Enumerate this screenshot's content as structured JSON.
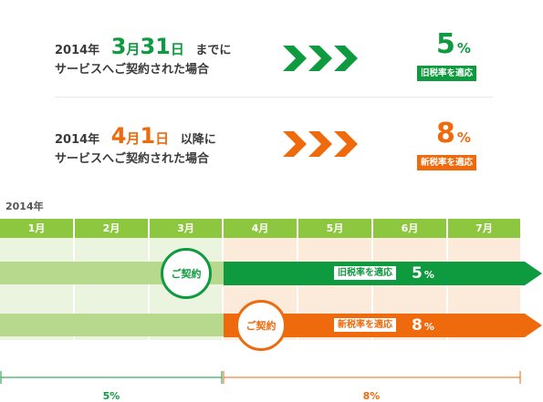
{
  "top": {
    "row1": {
      "year": "2014年",
      "month_num": "3",
      "month_unit": "月",
      "day_num": "31",
      "day_unit": "日",
      "suffix": "までに",
      "line2": "サービスへご契約された場合",
      "rate_value": "5",
      "rate_unit": "%",
      "badge": "旧税率を適応"
    },
    "row2": {
      "year": "2014年",
      "month_num": "4",
      "month_unit": "月",
      "day_num": "1",
      "day_unit": "日",
      "suffix": "以降に",
      "line2": "サービスへご契約された場合",
      "rate_value": "8",
      "rate_unit": "%",
      "badge": "新税率を適応"
    }
  },
  "timeline": {
    "year_label": "2014年",
    "months": [
      "1月",
      "2月",
      "3月",
      "4月",
      "5月",
      "6月",
      "7月"
    ],
    "bar1": {
      "circle": "ご契約",
      "badge": "旧税率を適応",
      "rate_value": "5",
      "rate_unit": "%"
    },
    "bar2": {
      "circle": "ご契約",
      "badge": "新税率を適応",
      "rate_value": "8",
      "rate_unit": "%"
    },
    "bottom_left": "5%",
    "bottom_right": "8%"
  },
  "colors": {
    "green": "#0e9a3e",
    "orange": "#ee6a0c",
    "light_green": "#b6d98d",
    "month_header": "#8dc63f"
  }
}
